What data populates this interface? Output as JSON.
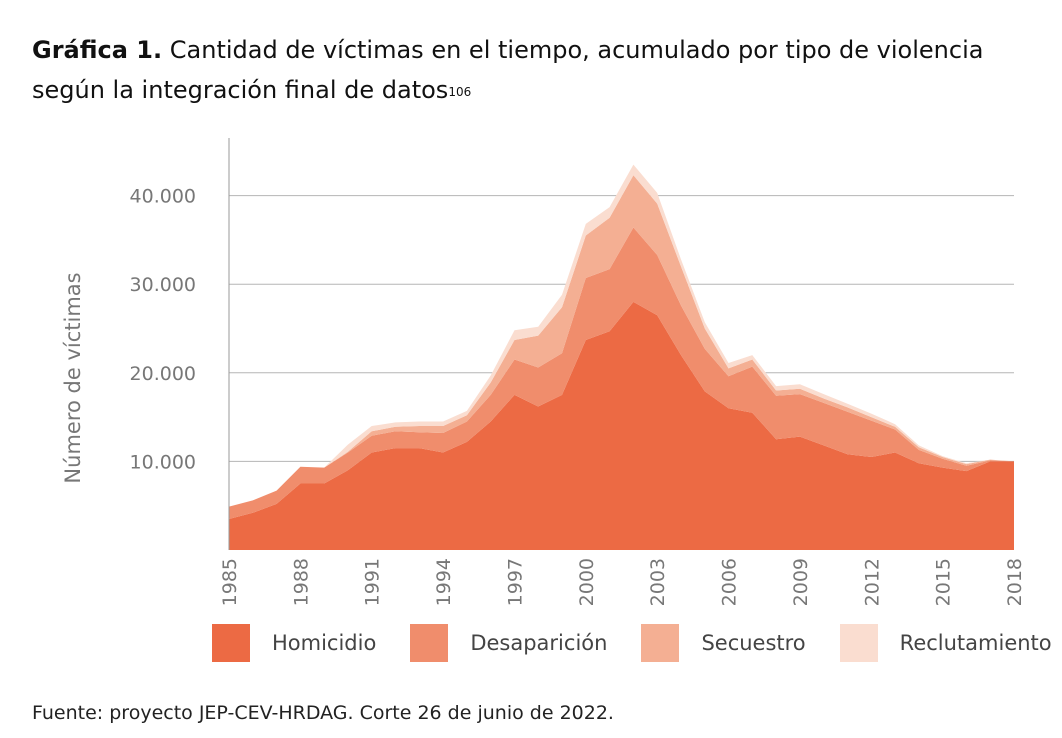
{
  "title": {
    "label": "Gráfica 1.",
    "text": "Cantidad de víctimas en el tiempo, acumulado por tipo de violencia según la integración final de datos",
    "footnote": "106"
  },
  "source": "Fuente: proyecto JEP-CEV-HRDAG. Corte 26 de junio de 2022.",
  "chart_data": {
    "type": "area",
    "stacked": true,
    "ylabel": "Número de víctimas",
    "xlabel": "",
    "x": [
      1985,
      1986,
      1987,
      1988,
      1989,
      1990,
      1991,
      1992,
      1993,
      1994,
      1995,
      1996,
      1997,
      1998,
      1999,
      2000,
      2001,
      2002,
      2003,
      2004,
      2005,
      2006,
      2007,
      2008,
      2009,
      2010,
      2011,
      2012,
      2013,
      2014,
      2015,
      2016,
      2017,
      2018
    ],
    "x_tick_labels": [
      "1985",
      "1988",
      "1991",
      "1994",
      "1997",
      "2000",
      "2003",
      "2006",
      "2009",
      "2012",
      "2015",
      "2018"
    ],
    "y_tick_labels": [
      "10.000",
      "20.000",
      "30.000",
      "40.000"
    ],
    "y_ticks": [
      10000,
      20000,
      30000,
      40000
    ],
    "ylim": [
      0,
      46500
    ],
    "grid": "horizontal",
    "legend_position": "bottom",
    "series": [
      {
        "name": "Homicidio",
        "color": "#EC6A44",
        "values": [
          3500,
          4200,
          5200,
          7500,
          7500,
          9000,
          11000,
          11500,
          11500,
          11000,
          12200,
          14500,
          17500,
          16200,
          17500,
          23700,
          24700,
          28000,
          26500,
          22000,
          17900,
          16000,
          15500,
          12500,
          12800,
          11800,
          10800,
          10500,
          11000,
          9800,
          9300,
          8900,
          10000,
          10000
        ]
      },
      {
        "name": "Desaparición",
        "color": "#F08D6C",
        "values": [
          1400,
          1400,
          1500,
          1900,
          1800,
          2000,
          1900,
          1900,
          1800,
          2200,
          2300,
          3000,
          4000,
          4400,
          4700,
          7000,
          7000,
          8400,
          6800,
          5600,
          4800,
          3600,
          5200,
          4900,
          4800,
          4800,
          4800,
          4100,
          2600,
          1500,
          1000,
          600,
          100,
          0
        ]
      },
      {
        "name": "Secuestro",
        "color": "#F4AF93",
        "values": [
          0,
          0,
          0,
          0,
          0,
          100,
          500,
          500,
          700,
          800,
          700,
          1400,
          2200,
          3600,
          5200,
          4800,
          5800,
          5900,
          5800,
          4400,
          2300,
          900,
          800,
          600,
          600,
          500,
          500,
          400,
          300,
          300,
          200,
          200,
          100,
          0
        ]
      },
      {
        "name": "Reclutamiento",
        "color": "#FADDD0",
        "values": [
          0,
          0,
          0,
          0,
          0,
          800,
          600,
          500,
          500,
          500,
          500,
          800,
          1100,
          1000,
          1400,
          1300,
          1200,
          1200,
          1200,
          800,
          700,
          600,
          500,
          500,
          500,
          500,
          400,
          400,
          300,
          200,
          100,
          100,
          0,
          0
        ]
      }
    ]
  }
}
